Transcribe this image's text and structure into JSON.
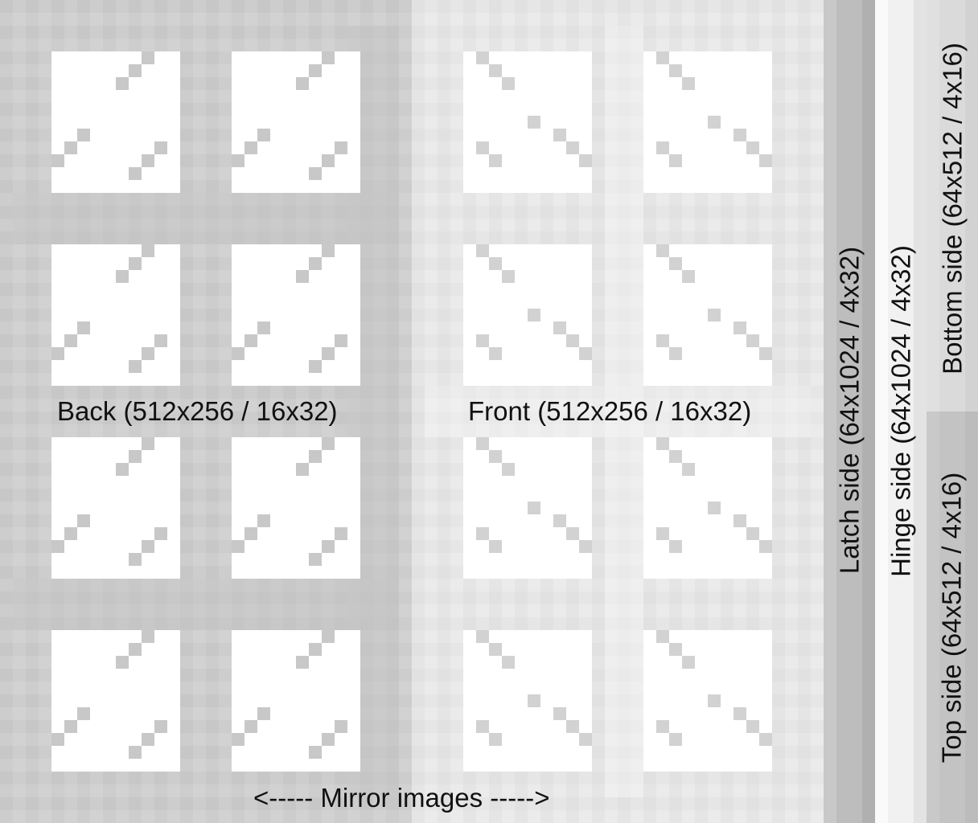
{
  "labels": {
    "back": "Back (512x256 / 16x32)",
    "front": "Front (512x256 / 16x32)",
    "mirror": "<----- Mirror images ----->",
    "latch": "Latch side (64x1024 / 4x32)",
    "hinge": "Hinge side (64x1024 / 4x32)",
    "bottom": "Bottom side (64x512 / 4x16)",
    "top": "Top side (64x512 / 4x16)"
  },
  "colors": {
    "back_frame": "#cfcfcf",
    "front_frame": "#e9e9e9",
    "pane": "#ffffff",
    "pane_mark_back": "#c8c8c8",
    "pane_mark_front": "#d2d2d2"
  }
}
